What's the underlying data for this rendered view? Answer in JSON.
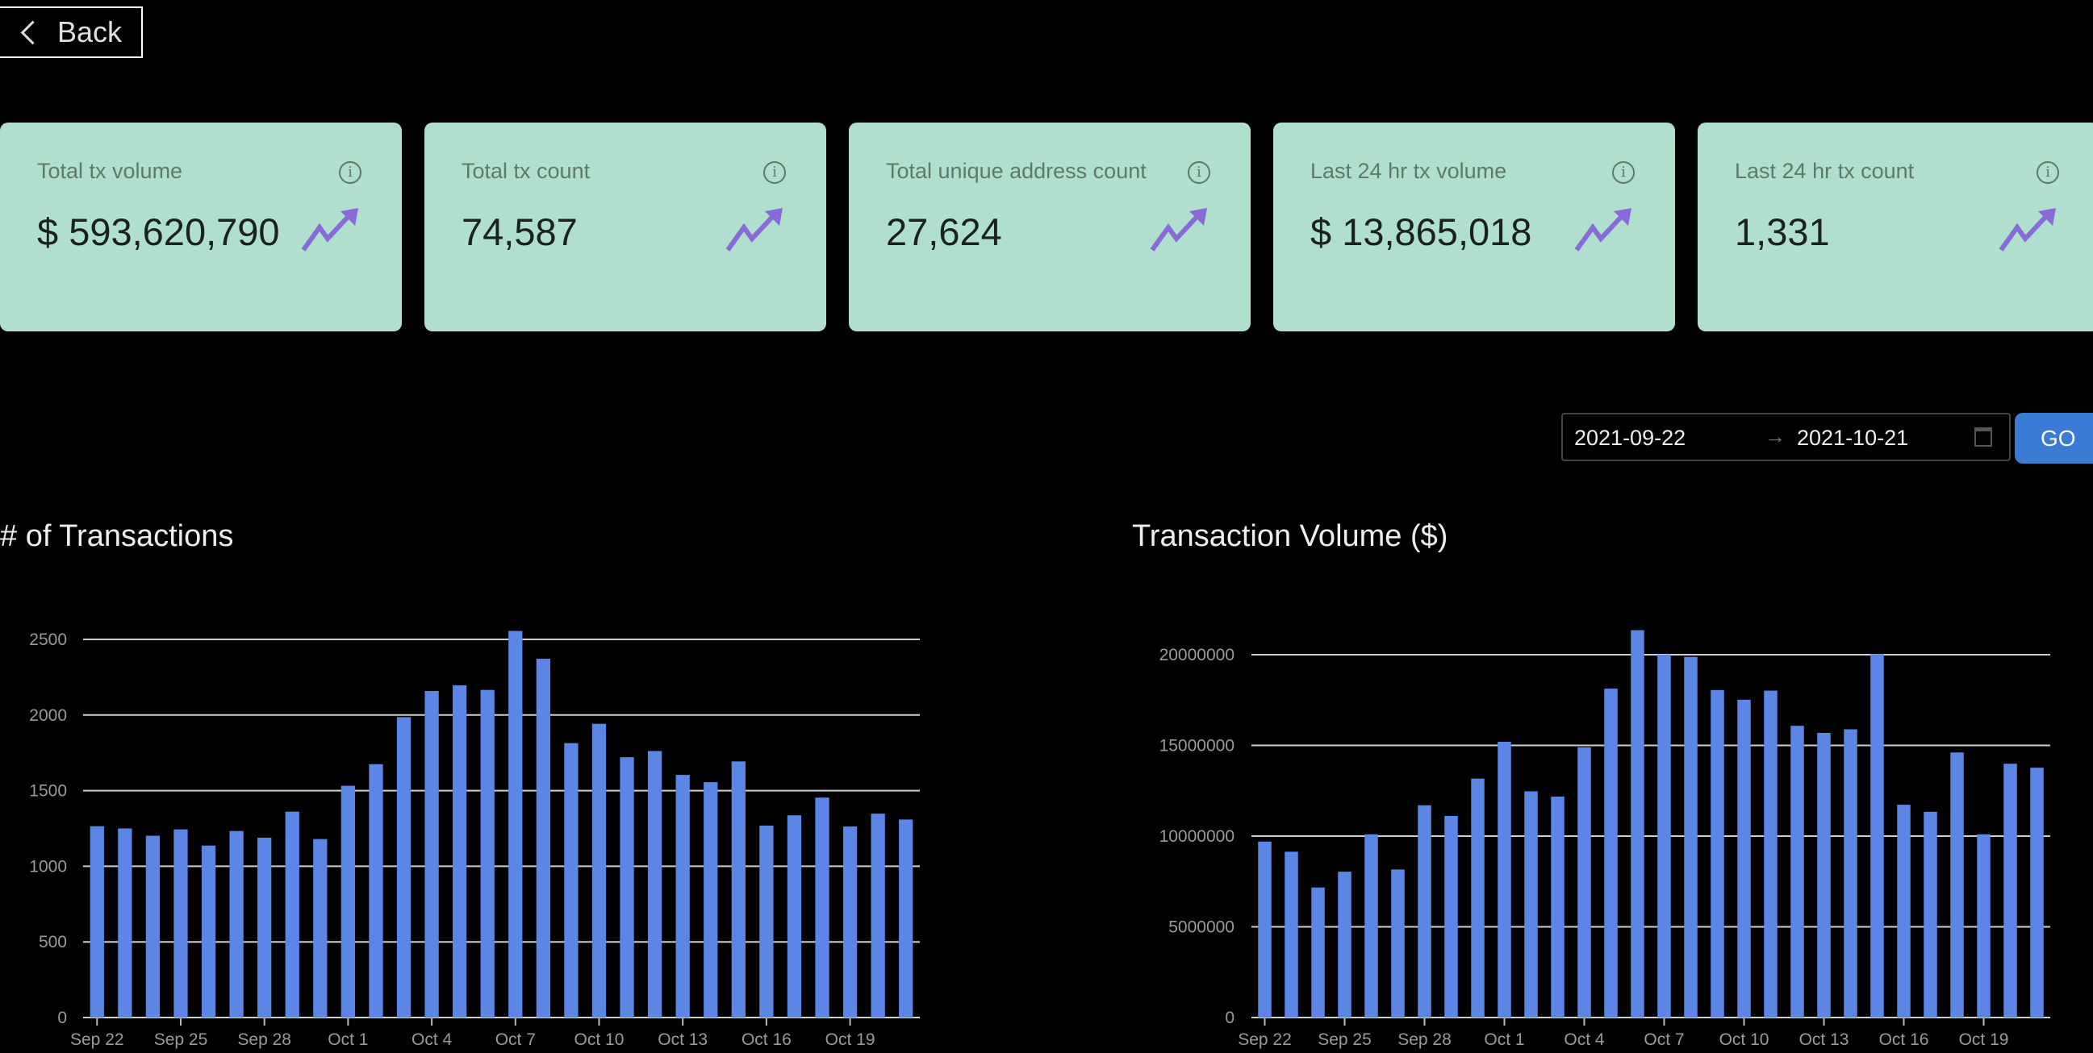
{
  "back_label": "Back",
  "cards": [
    {
      "label": "Total tx volume",
      "value": "$ 593,620,790",
      "icon": "trending-up-icon"
    },
    {
      "label": "Total tx count",
      "value": "74,587",
      "icon": "trending-up-icon"
    },
    {
      "label": "Total unique address count",
      "value": "27,624",
      "icon": "trending-up-icon"
    },
    {
      "label": "Last 24 hr tx volume",
      "value": "$ 13,865,018",
      "icon": "trending-up-icon"
    },
    {
      "label": "Last 24 hr tx count",
      "value": "1,331",
      "icon": "trending-up-icon"
    }
  ],
  "info_glyph": "i",
  "date_range": {
    "start": "2021-09-22",
    "separator": "→",
    "end": "2021-10-21"
  },
  "go_label": "GO",
  "colors": {
    "card_bg": "#b0e0cd",
    "bar": "#5b86e5",
    "accent": "#3a7bd5",
    "trend": "#8a6ad8"
  },
  "chart_data": [
    {
      "type": "bar",
      "title": "# of Transactions",
      "xlabel": "",
      "ylabel": "",
      "ylim": [
        0,
        2500
      ],
      "yticks": [
        "0",
        "500",
        "1000",
        "1500",
        "2000",
        "2500"
      ],
      "ytick_values": [
        0,
        500,
        1000,
        1500,
        2000,
        2500
      ],
      "xtick_labels": [
        "Sep 22",
        "Sep 25",
        "Sep 28",
        "Oct 1",
        "Oct 4",
        "Oct 7",
        "Oct 10",
        "Oct 13",
        "Oct 16",
        "Oct 19"
      ],
      "grid": true,
      "values": [
        1265,
        1250,
        1202,
        1244,
        1137,
        1233,
        1189,
        1361,
        1180,
        1532,
        1675,
        1986,
        2159,
        2196,
        2166,
        2556,
        2372,
        1814,
        1942,
        1721,
        1762,
        1604,
        1556,
        1693,
        1269,
        1337,
        1454,
        1263,
        1348,
        1309
      ]
    },
    {
      "type": "bar",
      "title": "Transaction Volume ($)",
      "xlabel": "",
      "ylabel": "",
      "ylim": [
        0,
        20000000
      ],
      "yticks": [
        "0",
        "5000000",
        "10000000",
        "15000000",
        "20000000"
      ],
      "ytick_values": [
        0,
        5000000,
        10000000,
        15000000,
        20000000
      ],
      "xtick_labels": [
        "Sep 22",
        "Sep 25",
        "Sep 28",
        "Oct 1",
        "Oct 4",
        "Oct 7",
        "Oct 10",
        "Oct 13",
        "Oct 16",
        "Oct 19"
      ],
      "grid": true,
      "values": [
        9700000,
        9140000,
        7170000,
        8040000,
        10100000,
        8160000,
        11700000,
        11110000,
        13170000,
        15200000,
        12470000,
        12180000,
        14900000,
        18130000,
        21350000,
        20000000,
        19880000,
        18050000,
        17520000,
        18020000,
        16080000,
        15690000,
        15890000,
        20030000,
        11730000,
        11340000,
        14610000,
        10100000,
        13990000,
        13770000
      ]
    }
  ]
}
